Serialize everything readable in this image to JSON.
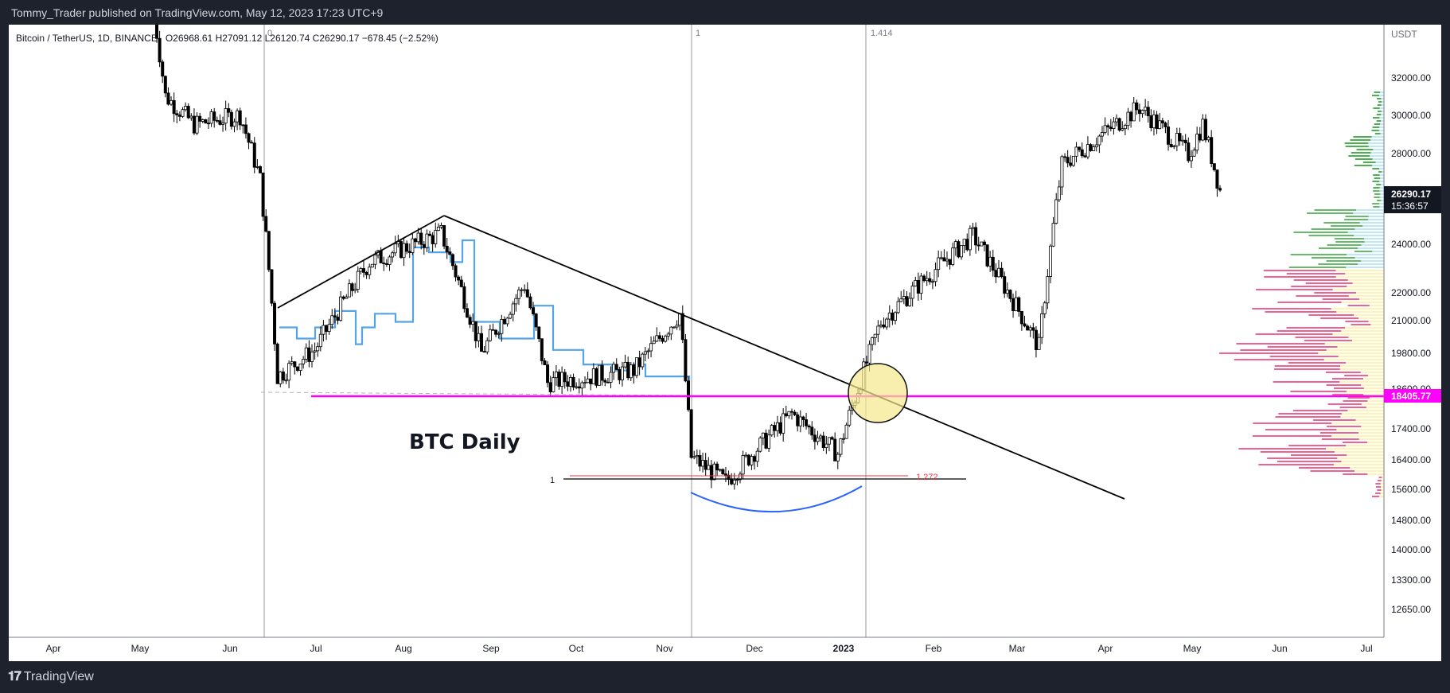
{
  "header": {
    "published": "Tommy_Trader published on TradingView.com, May 12, 2023 17:23 UTC+9"
  },
  "footer": {
    "brand": "TradingView"
  },
  "chart_data": {
    "type": "candlestick",
    "symbol_info": "Bitcoin / TetherUS, 1D, BINANCE",
    "ohlc_text": "O26968.61  H27091.12  L26120.74  C26290.17  −678.45 (−2.52%)",
    "currency": "USDT",
    "x_labels": [
      "Apr",
      "May",
      "Jun",
      "Jul",
      "Aug",
      "Sep",
      "Oct",
      "Nov",
      "Dec",
      "2023",
      "Feb",
      "Mar",
      "Apr",
      "May",
      "Jun",
      "Jul"
    ],
    "y_ticks": [
      "32000.00",
      "30000.00",
      "28000.00",
      "24000.00",
      "22000.00",
      "21000.00",
      "19800.00",
      "18600.00",
      "17400.00",
      "16400.00",
      "15600.00",
      "14800.00",
      "14000.00",
      "13300.00",
      "12650.00"
    ],
    "y_range": [
      12200,
      33800
    ],
    "scale": "log",
    "last_price": "26290.17",
    "countdown": "15:36:57",
    "level_price": "18405.77",
    "annotation_text": "BTC Daily",
    "fib_labels": {
      "zero": "0",
      "one_top": "1",
      "ext_top": "1.414",
      "one_left": "1",
      "ext_left": "1.272"
    },
    "approx_close_path": [
      {
        "date": "2022-05-05",
        "close": 37000
      },
      {
        "date": "2022-05-10",
        "close": 31000
      },
      {
        "date": "2022-05-20",
        "close": 29500
      },
      {
        "date": "2022-06-05",
        "close": 30000
      },
      {
        "date": "2022-06-12",
        "close": 26800
      },
      {
        "date": "2022-06-18",
        "close": 19000
      },
      {
        "date": "2022-07-01",
        "close": 19900
      },
      {
        "date": "2022-07-20",
        "close": 23200
      },
      {
        "date": "2022-08-14",
        "close": 24400
      },
      {
        "date": "2022-08-28",
        "close": 19800
      },
      {
        "date": "2022-09-12",
        "close": 22300
      },
      {
        "date": "2022-09-20",
        "close": 18800
      },
      {
        "date": "2022-10-20",
        "close": 19200
      },
      {
        "date": "2022-11-05",
        "close": 21200
      },
      {
        "date": "2022-11-09",
        "close": 16500
      },
      {
        "date": "2022-11-21",
        "close": 15800
      },
      {
        "date": "2022-12-14",
        "close": 17800
      },
      {
        "date": "2022-12-30",
        "close": 16600
      },
      {
        "date": "2023-01-14",
        "close": 20900
      },
      {
        "date": "2023-02-15",
        "close": 24300
      },
      {
        "date": "2023-03-10",
        "close": 20000
      },
      {
        "date": "2023-03-18",
        "close": 27500
      },
      {
        "date": "2023-04-14",
        "close": 30400
      },
      {
        "date": "2023-05-01",
        "close": 28000
      },
      {
        "date": "2023-05-06",
        "close": 29500
      },
      {
        "date": "2023-05-12",
        "close": 26290
      }
    ],
    "volume_profile": "visible range, up volume pink/green, down volume yellow/blue",
    "colors": {
      "level": "#ff00ff",
      "trend": "#000000",
      "step": "#55a4e8",
      "arc": "#2962ff",
      "circle": "#f5e8a0",
      "fib": "#f23645"
    }
  }
}
